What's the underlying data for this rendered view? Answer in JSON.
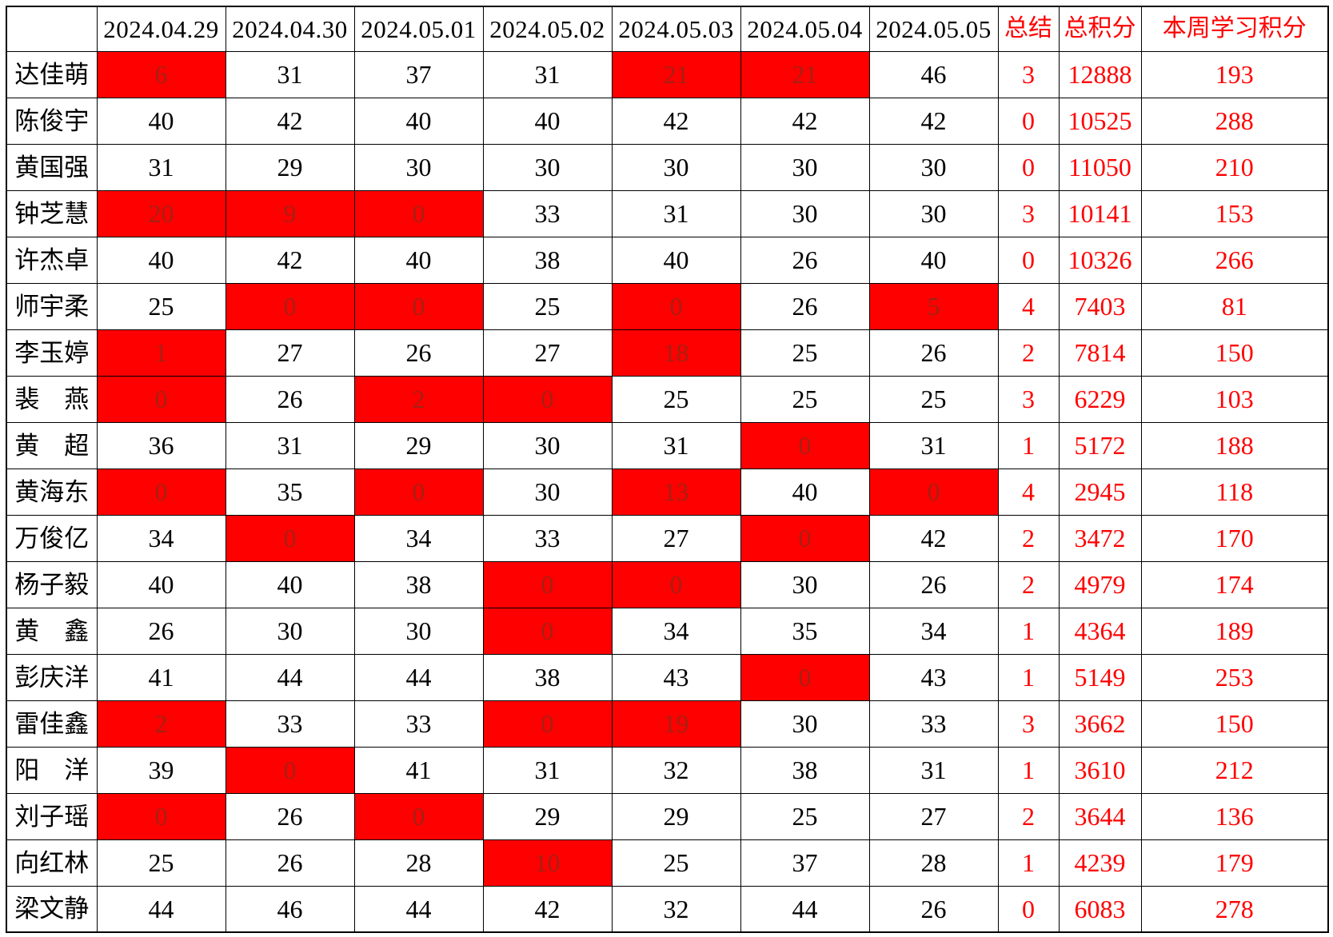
{
  "table": {
    "corner": "",
    "date_columns": [
      "2024.04.29",
      "2024.04.30",
      "2024.05.01",
      "2024.05.02",
      "2024.05.03",
      "2024.05.04",
      "2024.05.05"
    ],
    "summary_columns": [
      "总结",
      "总积分",
      "本周学习积分"
    ],
    "rows": [
      {
        "name": "达佳萌",
        "scores": [
          6,
          31,
          37,
          31,
          21,
          21,
          46
        ],
        "highlighted": [
          0,
          4,
          5
        ],
        "summary": "3",
        "total": "12888",
        "weekly": "193"
      },
      {
        "name": "陈俊宇",
        "scores": [
          40,
          42,
          40,
          40,
          42,
          42,
          42
        ],
        "highlighted": [],
        "summary": "0",
        "total": "10525",
        "weekly": "288"
      },
      {
        "name": "黄国强",
        "scores": [
          31,
          29,
          30,
          30,
          30,
          30,
          30
        ],
        "highlighted": [],
        "summary": "0",
        "total": "11050",
        "weekly": "210"
      },
      {
        "name": "钟芝慧",
        "scores": [
          20,
          9,
          0,
          33,
          31,
          30,
          30
        ],
        "highlighted": [
          0,
          1,
          2
        ],
        "summary": "3",
        "total": "10141",
        "weekly": "153"
      },
      {
        "name": "许杰卓",
        "scores": [
          40,
          42,
          40,
          38,
          40,
          26,
          40
        ],
        "highlighted": [],
        "summary": "0",
        "total": "10326",
        "weekly": "266"
      },
      {
        "name": "师宇柔",
        "scores": [
          25,
          0,
          0,
          25,
          0,
          26,
          5
        ],
        "highlighted": [
          1,
          2,
          4,
          6
        ],
        "summary": "4",
        "total": "7403",
        "weekly": "81"
      },
      {
        "name": "李玉婷",
        "scores": [
          1,
          27,
          26,
          27,
          18,
          25,
          26
        ],
        "highlighted": [
          0,
          4
        ],
        "summary": "2",
        "total": "7814",
        "weekly": "150"
      },
      {
        "name": "裴　燕",
        "scores": [
          0,
          26,
          2,
          0,
          25,
          25,
          25
        ],
        "highlighted": [
          0,
          2,
          3
        ],
        "summary": "3",
        "total": "6229",
        "weekly": "103"
      },
      {
        "name": "黄　超",
        "scores": [
          36,
          31,
          29,
          30,
          31,
          0,
          31
        ],
        "highlighted": [
          5
        ],
        "summary": "1",
        "total": "5172",
        "weekly": "188"
      },
      {
        "name": "黄海东",
        "scores": [
          0,
          35,
          0,
          30,
          13,
          40,
          0
        ],
        "highlighted": [
          0,
          2,
          4,
          6
        ],
        "summary": "4",
        "total": "2945",
        "weekly": "118"
      },
      {
        "name": "万俊亿",
        "scores": [
          34,
          0,
          34,
          33,
          27,
          0,
          42
        ],
        "highlighted": [
          1,
          5
        ],
        "summary": "2",
        "total": "3472",
        "weekly": "170"
      },
      {
        "name": "杨子毅",
        "scores": [
          40,
          40,
          38,
          0,
          0,
          30,
          26
        ],
        "highlighted": [
          3,
          4
        ],
        "summary": "2",
        "total": "4979",
        "weekly": "174"
      },
      {
        "name": "黄　鑫",
        "scores": [
          26,
          30,
          30,
          0,
          34,
          35,
          34
        ],
        "highlighted": [
          3
        ],
        "summary": "1",
        "total": "4364",
        "weekly": "189"
      },
      {
        "name": "彭庆洋",
        "scores": [
          41,
          44,
          44,
          38,
          43,
          0,
          43
        ],
        "highlighted": [
          5
        ],
        "summary": "1",
        "total": "5149",
        "weekly": "253"
      },
      {
        "name": "雷佳鑫",
        "scores": [
          2,
          33,
          33,
          0,
          19,
          30,
          33
        ],
        "highlighted": [
          0,
          3,
          4
        ],
        "summary": "3",
        "total": "3662",
        "weekly": "150"
      },
      {
        "name": "阳　洋",
        "scores": [
          39,
          0,
          41,
          31,
          32,
          38,
          31
        ],
        "highlighted": [
          1
        ],
        "summary": "1",
        "total": "3610",
        "weekly": "212"
      },
      {
        "name": "刘子瑶",
        "scores": [
          0,
          26,
          0,
          29,
          29,
          25,
          27
        ],
        "highlighted": [
          0,
          2
        ],
        "summary": "2",
        "total": "3644",
        "weekly": "136"
      },
      {
        "name": "向红林",
        "scores": [
          25,
          26,
          28,
          10,
          25,
          37,
          28
        ],
        "highlighted": [
          3
        ],
        "summary": "1",
        "total": "4239",
        "weekly": "179"
      },
      {
        "name": "梁文静",
        "scores": [
          44,
          46,
          44,
          42,
          32,
          44,
          26
        ],
        "highlighted": [],
        "summary": "0",
        "total": "6083",
        "weekly": "278"
      }
    ]
  },
  "colors": {
    "grid": "#000000",
    "highlight_bg": "#ff0000",
    "highlight_text": "#a52014",
    "accent_text": "#ff0000"
  }
}
